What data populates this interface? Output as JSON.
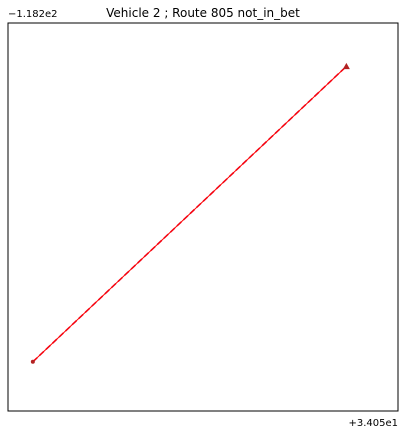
{
  "chart_data": {
    "type": "line",
    "title": "Vehicle 2 ; Route 805 not_in_bet",
    "x_offset_label": "+3.405e1",
    "y_offset_label": "−1.182e2",
    "xlabel": "",
    "ylabel": "",
    "grid": false,
    "series": [
      {
        "color": "#dc143c",
        "style": "dashed",
        "x": [
          0.0,
          0.00082
        ],
        "y": [
          0.0,
          0.00075
        ]
      },
      {
        "color": "#ff0000",
        "style": "solid",
        "x": [
          0.0,
          0.00082
        ],
        "y": [
          0.0,
          0.00075
        ]
      }
    ],
    "markers": [
      {
        "color": "#b22222",
        "shape": "triangle",
        "x": 0.00082,
        "y": 0.00075
      },
      {
        "color": "#b22222",
        "shape": "dot",
        "x": 0.0,
        "y": 0.0
      }
    ],
    "xlim": [
      -6.5e-05,
      0.000955
    ],
    "ylim": [
      -0.000125,
      0.00086
    ]
  }
}
